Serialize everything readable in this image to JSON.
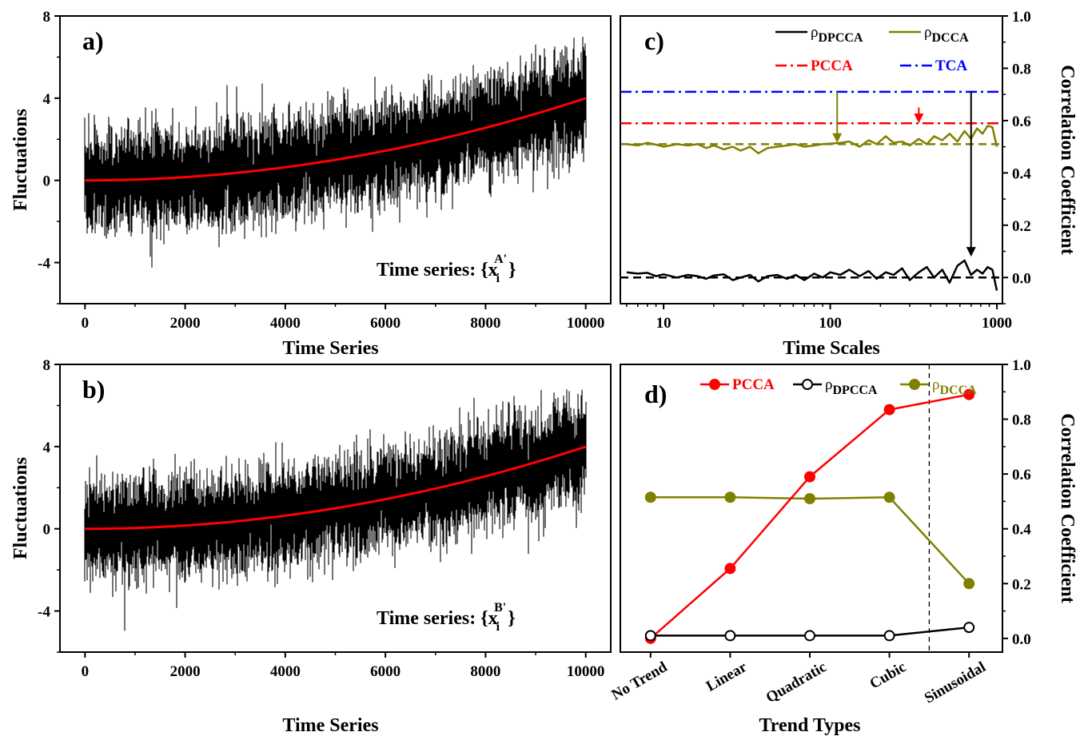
{
  "chart_data": [
    {
      "panel": "a)",
      "type": "line",
      "xlabel": "Time Series",
      "ylabel": "Fluctuations",
      "xlim": [
        -500,
        10500
      ],
      "ylim": [
        -6,
        8
      ],
      "xticks": [
        "0",
        "2000",
        "4000",
        "6000",
        "8000",
        "10000"
      ],
      "yticks": [
        "-4",
        "0",
        "4",
        "8"
      ],
      "annotation": "Time series: {x",
      "annotation_sub": "i",
      "annotation_sup": "A'",
      "annotation_close": "}",
      "series": [
        {
          "role": "noisy signal",
          "color": "#000000",
          "trend_exponent": 2,
          "trend_end": 4,
          "noise_sd": 1.1
        },
        {
          "role": "trend",
          "color": "#ff0000",
          "x": [
            0,
            2000,
            4000,
            6000,
            8000,
            10000
          ],
          "values": [
            0,
            0.16,
            0.64,
            1.44,
            2.56,
            4.0
          ]
        }
      ]
    },
    {
      "panel": "b)",
      "type": "line",
      "xlabel": "Time Series",
      "ylabel": "Fluctuations",
      "xlim": [
        -500,
        10500
      ],
      "ylim": [
        -6,
        8
      ],
      "xticks": [
        "0",
        "2000",
        "4000",
        "6000",
        "8000",
        "10000"
      ],
      "yticks": [
        "-4",
        "0",
        "4",
        "8"
      ],
      "annotation": "Time series: {x",
      "annotation_sub": "i",
      "annotation_sup": "B'",
      "annotation_close": "}",
      "series": [
        {
          "role": "noisy signal",
          "color": "#000000",
          "trend_exponent": 2,
          "trend_end": 4,
          "noise_sd": 1.1
        },
        {
          "role": "trend",
          "color": "#ff0000",
          "x": [
            0,
            2000,
            4000,
            6000,
            8000,
            10000
          ],
          "values": [
            0,
            0.16,
            0.64,
            1.44,
            2.56,
            4.0
          ]
        }
      ]
    },
    {
      "panel": "c)",
      "type": "line",
      "xlabel": "Time Scales",
      "ylabel": "Correlation Coefficient",
      "xscale": "log",
      "xlim": [
        5.5,
        1080
      ],
      "ylim": [
        -0.1,
        1.0
      ],
      "xticks": [
        "10",
        "100",
        "1000"
      ],
      "yticks": [
        "0.0",
        "0.2",
        "0.4",
        "0.6",
        "0.8",
        "1.0"
      ],
      "legend": [
        {
          "symbol": "ρ",
          "sub": "DPCCA",
          "color": "#000000",
          "style": "solid"
        },
        {
          "symbol": "ρ",
          "sub": "DCCA",
          "color": "#808000",
          "style": "solid"
        },
        {
          "label": "PCCA",
          "color": "#ff0000",
          "style": "dashdot"
        },
        {
          "label": "TCA",
          "color": "#0000ff",
          "style": "dashdot"
        }
      ],
      "series": [
        {
          "name": "ρDPCCA",
          "color": "#000000",
          "x": [
            6,
            7,
            8,
            9,
            10,
            12,
            14,
            16,
            18,
            20,
            23,
            26,
            29,
            33,
            37,
            42,
            48,
            55,
            62,
            70,
            80,
            90,
            100,
            115,
            130,
            150,
            170,
            190,
            215,
            240,
            270,
            300,
            340,
            380,
            420,
            470,
            520,
            580,
            640,
            700,
            760,
            820,
            880,
            940,
            1000
          ],
          "values": [
            0.02,
            0.015,
            0.018,
            0.005,
            0.012,
            0.0,
            0.01,
            0.005,
            -0.005,
            0.008,
            0.012,
            -0.01,
            0.0,
            0.01,
            -0.015,
            0.005,
            0.01,
            -0.005,
            0.01,
            -0.01,
            0.015,
            0.0,
            0.02,
            0.01,
            0.03,
            0.005,
            0.025,
            -0.005,
            0.02,
            0.01,
            0.035,
            -0.01,
            0.02,
            0.04,
            0.0,
            0.03,
            -0.02,
            0.045,
            0.065,
            0.01,
            0.03,
            0.015,
            0.04,
            0.03,
            -0.05
          ]
        },
        {
          "name": "ρDCCA",
          "color": "#808000",
          "x": [
            6,
            7,
            8,
            9,
            10,
            12,
            14,
            16,
            18,
            20,
            23,
            26,
            29,
            33,
            37,
            42,
            48,
            55,
            62,
            70,
            80,
            90,
            100,
            115,
            130,
            150,
            170,
            190,
            215,
            240,
            270,
            300,
            340,
            380,
            420,
            470,
            520,
            580,
            640,
            700,
            760,
            820,
            880,
            940,
            1000
          ],
          "values": [
            0.51,
            0.505,
            0.515,
            0.508,
            0.5,
            0.51,
            0.505,
            0.51,
            0.495,
            0.505,
            0.49,
            0.5,
            0.485,
            0.5,
            0.475,
            0.495,
            0.5,
            0.505,
            0.51,
            0.5,
            0.505,
            0.51,
            0.512,
            0.515,
            0.52,
            0.5,
            0.525,
            0.51,
            0.54,
            0.515,
            0.52,
            0.505,
            0.53,
            0.51,
            0.54,
            0.525,
            0.55,
            0.52,
            0.56,
            0.53,
            0.57,
            0.55,
            0.58,
            0.575,
            0.5
          ]
        },
        {
          "name": "PCCA",
          "color": "#ff0000",
          "style": "dashdot",
          "x": [
            5.5,
            1080
          ],
          "values": [
            0.59,
            0.59
          ]
        },
        {
          "name": "TCA",
          "color": "#0000ff",
          "style": "dashdot",
          "x": [
            5.5,
            1080
          ],
          "values": [
            0.71,
            0.71
          ]
        },
        {
          "name": "ρDCCA reference",
          "color": "#808000",
          "style": "dash",
          "x": [
            5.5,
            1080
          ],
          "values": [
            0.51,
            0.51
          ]
        },
        {
          "name": "ρDPCCA reference",
          "color": "#000000",
          "style": "dash",
          "x": [
            5.5,
            1080
          ],
          "values": [
            0.0,
            0.0
          ]
        }
      ],
      "arrows": [
        {
          "color": "#808000",
          "x": 110,
          "from": 0.71,
          "to": 0.515
        },
        {
          "color": "#ff0000",
          "x": 340,
          "from": 0.65,
          "to": 0.59
        },
        {
          "color": "#000000",
          "x": 700,
          "from": 0.71,
          "to": 0.08
        }
      ]
    },
    {
      "panel": "d)",
      "type": "line",
      "xlabel": "Trend Types",
      "ylabel": "Correlation Coefficient",
      "categories": [
        "No Trend",
        "Linear",
        "Quadratic",
        "Cubic",
        "Sinusoidal"
      ],
      "ylim": [
        -0.05,
        1.0
      ],
      "yticks": [
        "0.0",
        "0.2",
        "0.4",
        "0.6",
        "0.8",
        "1.0"
      ],
      "divider_between": [
        3,
        4
      ],
      "legend": [
        {
          "label": "PCCA",
          "color": "#ff0000",
          "marker": "filled"
        },
        {
          "symbol": "ρ",
          "sub": "DPCCA",
          "color": "#000000",
          "marker": "open"
        },
        {
          "symbol": "ρ",
          "sub": "DCCA",
          "color": "#808000",
          "marker": "filled"
        }
      ],
      "series": [
        {
          "name": "PCCA",
          "color": "#ff0000",
          "marker": "filled",
          "values": [
            0.0,
            0.255,
            0.59,
            0.835,
            0.89
          ]
        },
        {
          "name": "ρDPCCA",
          "color": "#000000",
          "marker": "open",
          "values": [
            0.01,
            0.01,
            0.01,
            0.01,
            0.04
          ]
        },
        {
          "name": "ρDCCA",
          "color": "#808000",
          "marker": "filled",
          "values": [
            0.515,
            0.515,
            0.51,
            0.515,
            0.2
          ]
        }
      ]
    }
  ]
}
